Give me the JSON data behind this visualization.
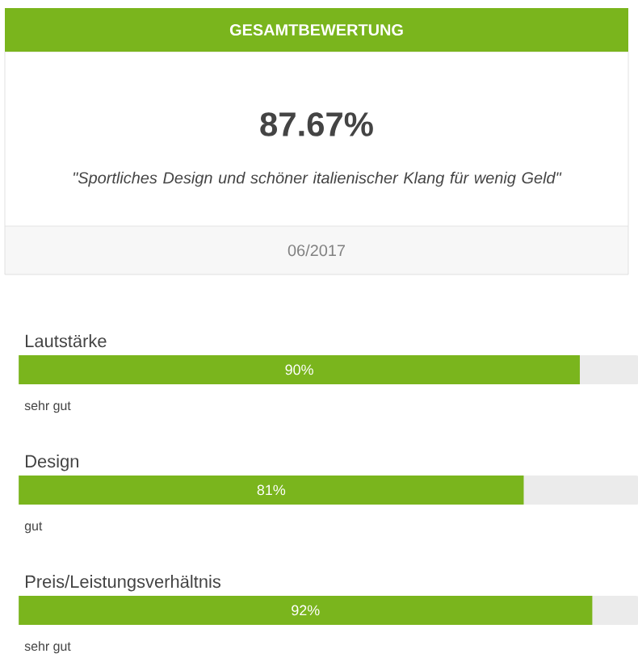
{
  "chart_data": {
    "type": "bar",
    "orientation": "horizontal",
    "title": "GESAMTBEWERTUNG",
    "annotations": [
      "87.67%",
      "\"Sportliches Design und schöner italienischer Klang für wenig Geld\"",
      "06/2017",
      "sehr gut",
      "gut",
      "sehr gut"
    ],
    "categories": [
      "Lautstärke",
      "Design",
      "Preis/Leistungsverhältnis"
    ],
    "values": [
      90,
      81,
      92
    ],
    "value_labels": [
      "90%",
      "81%",
      "92%"
    ],
    "color": "#7ab51d",
    "xlim": [
      0,
      100
    ]
  }
}
